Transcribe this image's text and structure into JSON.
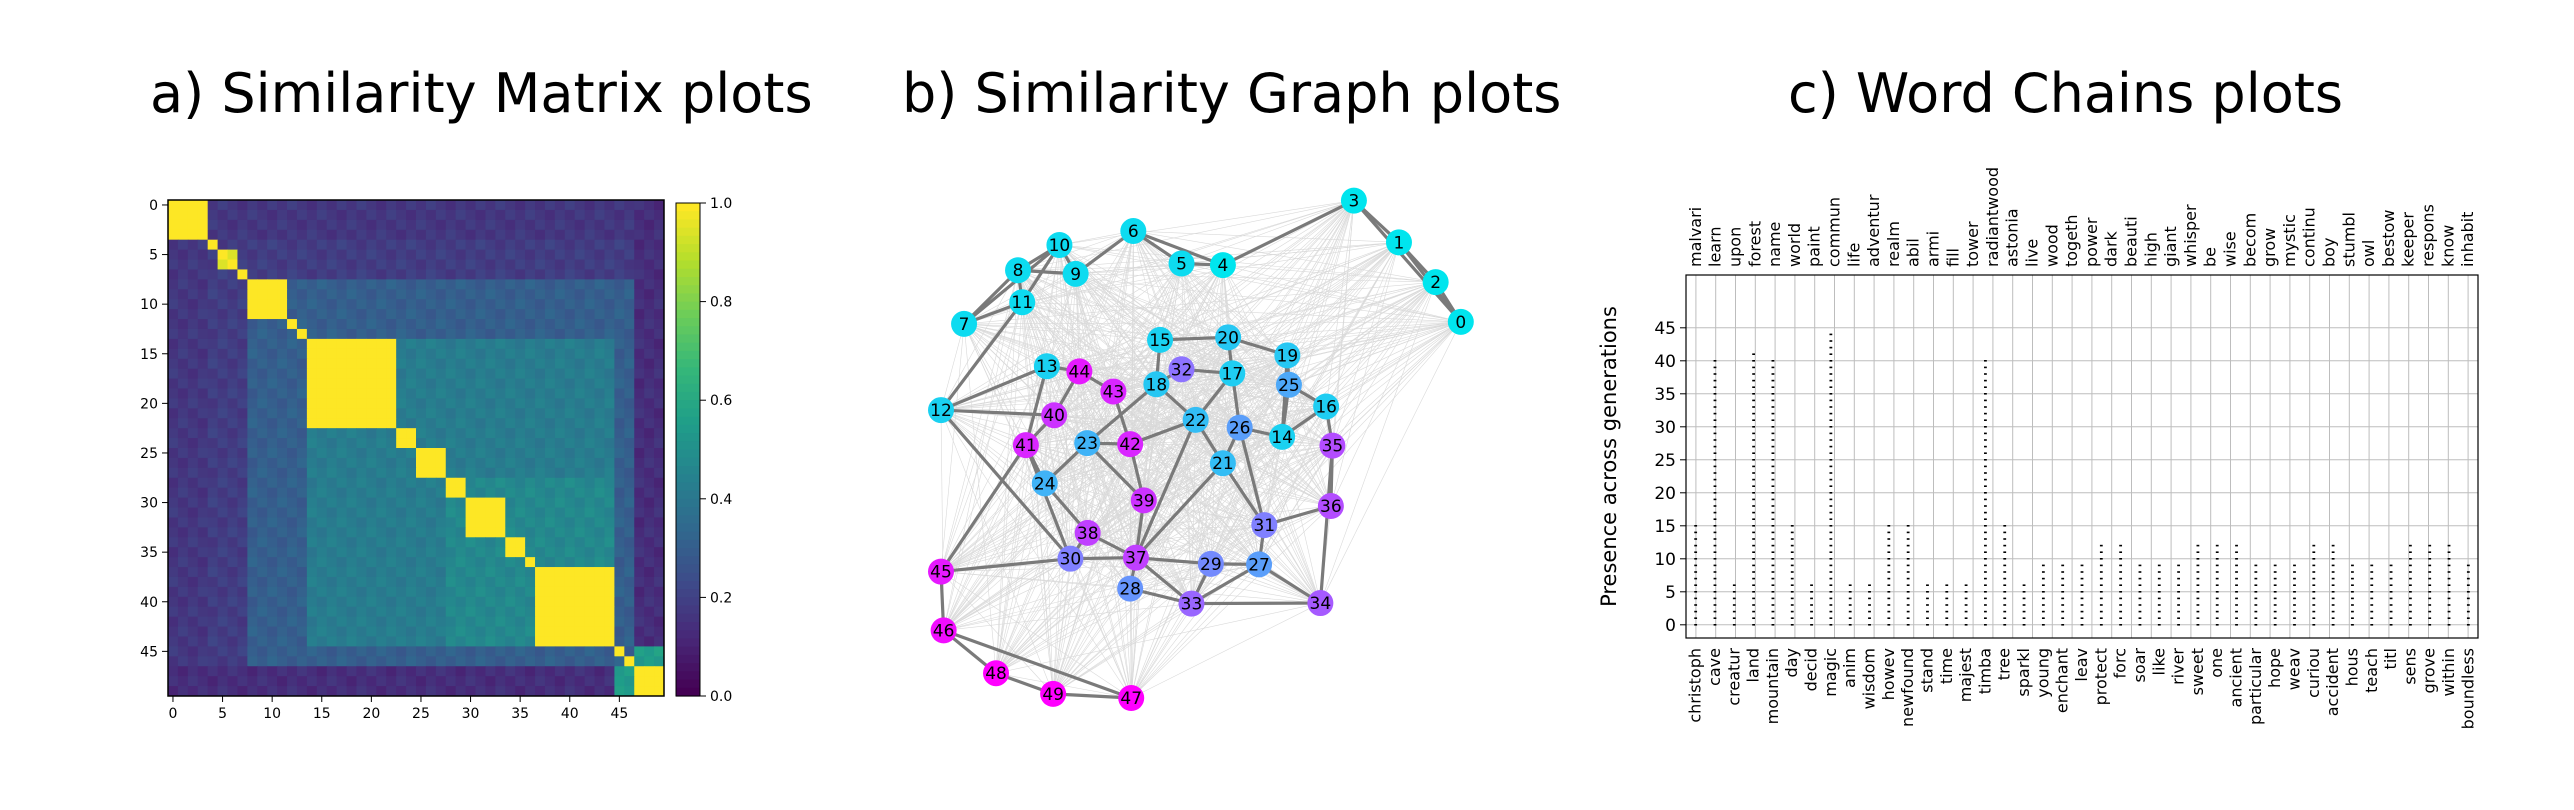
{
  "panels": {
    "a_title": "a) Similarity Matrix plots",
    "b_title": "b) Similarity Graph plots",
    "c_title": "c) Word Chains plots"
  },
  "chart_data": [
    {
      "type": "heatmap",
      "title": "",
      "n": 50,
      "xticks": [
        "0",
        "5",
        "10",
        "15",
        "20",
        "25",
        "30",
        "35",
        "40",
        "45"
      ],
      "yticks": [
        "0",
        "5",
        "10",
        "15",
        "20",
        "25",
        "30",
        "35",
        "40",
        "45"
      ],
      "colorbar": {
        "min": 0.0,
        "max": 1.0,
        "ticks": [
          "0.0",
          "0.2",
          "0.4",
          "0.6",
          "0.8",
          "1.0"
        ],
        "colormap": "viridis"
      },
      "blocks": [
        {
          "start": 0,
          "end": 3,
          "value": 1.0
        },
        {
          "start": 4,
          "end": 4,
          "value": 1.0
        },
        {
          "start": 5,
          "end": 6,
          "value": 0.95
        },
        {
          "start": 7,
          "end": 7,
          "value": 0.95
        },
        {
          "start": 8,
          "end": 11,
          "value": 1.0
        },
        {
          "start": 12,
          "end": 12,
          "value": 1.0
        },
        {
          "start": 13,
          "end": 13,
          "value": 1.0
        },
        {
          "start": 14,
          "end": 22,
          "value": 1.0
        },
        {
          "start": 23,
          "end": 24,
          "value": 1.0
        },
        {
          "start": 25,
          "end": 27,
          "value": 1.0
        },
        {
          "start": 28,
          "end": 29,
          "value": 1.0
        },
        {
          "start": 30,
          "end": 33,
          "value": 1.0
        },
        {
          "start": 34,
          "end": 35,
          "value": 1.0
        },
        {
          "start": 36,
          "end": 36,
          "value": 1.0
        },
        {
          "start": 37,
          "end": 44,
          "value": 1.0
        },
        {
          "start": 45,
          "end": 45,
          "value": 1.0
        },
        {
          "start": 46,
          "end": 46,
          "value": 1.0
        },
        {
          "start": 47,
          "end": 49,
          "value": 1.0
        }
      ],
      "background_value": 0.18
    },
    {
      "type": "graph",
      "title": "",
      "nodes": [
        {
          "id": "0",
          "x": 0.992,
          "y": 0.271,
          "group": 0
        },
        {
          "id": "1",
          "x": 0.874,
          "y": 0.117,
          "group": 0
        },
        {
          "id": "2",
          "x": 0.944,
          "y": 0.194,
          "group": 0
        },
        {
          "id": "3",
          "x": 0.788,
          "y": 0.036,
          "group": 0
        },
        {
          "id": "4",
          "x": 0.538,
          "y": 0.161,
          "group": 0
        },
        {
          "id": "5",
          "x": 0.459,
          "y": 0.158,
          "group": 0.05
        },
        {
          "id": "6",
          "x": 0.367,
          "y": 0.095,
          "group": 0.05
        },
        {
          "id": "7",
          "x": 0.044,
          "y": 0.275,
          "group": 0.05
        },
        {
          "id": "8",
          "x": 0.147,
          "y": 0.171,
          "group": 0.05
        },
        {
          "id": "9",
          "x": 0.257,
          "y": 0.178,
          "group": 0.05
        },
        {
          "id": "10",
          "x": 0.226,
          "y": 0.122,
          "group": 0.05
        },
        {
          "id": "11",
          "x": 0.155,
          "y": 0.233,
          "group": 0.05
        },
        {
          "id": "12",
          "x": 0.0,
          "y": 0.442,
          "group": 0.1
        },
        {
          "id": "13",
          "x": 0.202,
          "y": 0.357,
          "group": 0.1
        },
        {
          "id": "14",
          "x": 0.651,
          "y": 0.494,
          "group": 0.1
        },
        {
          "id": "15",
          "x": 0.418,
          "y": 0.306,
          "group": 0.1
        },
        {
          "id": "16",
          "x": 0.735,
          "y": 0.435,
          "group": 0.12
        },
        {
          "id": "17",
          "x": 0.556,
          "y": 0.371,
          "group": 0.12
        },
        {
          "id": "18",
          "x": 0.411,
          "y": 0.392,
          "group": 0.15
        },
        {
          "id": "19",
          "x": 0.661,
          "y": 0.336,
          "group": 0.15
        },
        {
          "id": "20",
          "x": 0.548,
          "y": 0.301,
          "group": 0.15
        },
        {
          "id": "21",
          "x": 0.538,
          "y": 0.545,
          "group": 0.2
        },
        {
          "id": "22",
          "x": 0.486,
          "y": 0.461,
          "group": 0.2
        },
        {
          "id": "23",
          "x": 0.279,
          "y": 0.506,
          "group": 0.25
        },
        {
          "id": "24",
          "x": 0.198,
          "y": 0.584,
          "group": 0.25
        },
        {
          "id": "25",
          "x": 0.664,
          "y": 0.393,
          "group": 0.3
        },
        {
          "id": "26",
          "x": 0.57,
          "y": 0.476,
          "group": 0.35
        },
        {
          "id": "27",
          "x": 0.607,
          "y": 0.741,
          "group": 0.35
        },
        {
          "id": "28",
          "x": 0.361,
          "y": 0.788,
          "group": 0.4
        },
        {
          "id": "29",
          "x": 0.515,
          "y": 0.74,
          "group": 0.45
        },
        {
          "id": "30",
          "x": 0.247,
          "y": 0.73,
          "group": 0.5
        },
        {
          "id": "31",
          "x": 0.617,
          "y": 0.665,
          "group": 0.5
        },
        {
          "id": "32",
          "x": 0.459,
          "y": 0.363,
          "group": 0.55
        },
        {
          "id": "33",
          "x": 0.478,
          "y": 0.817,
          "group": 0.6
        },
        {
          "id": "34",
          "x": 0.724,
          "y": 0.816,
          "group": 0.65
        },
        {
          "id": "35",
          "x": 0.747,
          "y": 0.511,
          "group": 0.7
        },
        {
          "id": "36",
          "x": 0.744,
          "y": 0.628,
          "group": 0.7
        },
        {
          "id": "37",
          "x": 0.372,
          "y": 0.728,
          "group": 0.75
        },
        {
          "id": "38",
          "x": 0.28,
          "y": 0.68,
          "group": 0.75
        },
        {
          "id": "39",
          "x": 0.387,
          "y": 0.617,
          "group": 0.8
        },
        {
          "id": "40",
          "x": 0.216,
          "y": 0.452,
          "group": 0.8
        },
        {
          "id": "41",
          "x": 0.162,
          "y": 0.51,
          "group": 0.85
        },
        {
          "id": "42",
          "x": 0.361,
          "y": 0.508,
          "group": 0.85
        },
        {
          "id": "43",
          "x": 0.329,
          "y": 0.406,
          "group": 0.85
        },
        {
          "id": "44",
          "x": 0.264,
          "y": 0.367,
          "group": 0.9
        },
        {
          "id": "45",
          "x": 0.0,
          "y": 0.755,
          "group": 0.9
        },
        {
          "id": "46",
          "x": 0.005,
          "y": 0.869,
          "group": 0.95
        },
        {
          "id": "47",
          "x": 0.363,
          "y": 1.0,
          "group": 1
        },
        {
          "id": "48",
          "x": 0.105,
          "y": 0.952,
          "group": 1
        },
        {
          "id": "49",
          "x": 0.214,
          "y": 0.992,
          "group": 1
        }
      ],
      "strong_edges": [
        [
          "3",
          "0"
        ],
        [
          "3",
          "1"
        ],
        [
          "1",
          "2"
        ],
        [
          "2",
          "0"
        ],
        [
          "1",
          "0"
        ],
        [
          "3",
          "4"
        ],
        [
          "4",
          "6"
        ],
        [
          "6",
          "5"
        ],
        [
          "5",
          "4"
        ],
        [
          "6",
          "9"
        ],
        [
          "10",
          "9"
        ],
        [
          "10",
          "8"
        ],
        [
          "8",
          "9"
        ],
        [
          "8",
          "11"
        ],
        [
          "11",
          "7"
        ],
        [
          "10",
          "7"
        ],
        [
          "10",
          "11"
        ],
        [
          "7",
          "8"
        ],
        [
          "12",
          "13"
        ],
        [
          "12",
          "11"
        ],
        [
          "12",
          "40"
        ],
        [
          "12",
          "30"
        ],
        [
          "13",
          "44"
        ],
        [
          "13",
          "41"
        ],
        [
          "15",
          "20"
        ],
        [
          "20",
          "19"
        ],
        [
          "19",
          "25"
        ],
        [
          "25",
          "16"
        ],
        [
          "16",
          "14"
        ],
        [
          "14",
          "26"
        ],
        [
          "26",
          "21"
        ],
        [
          "21",
          "22"
        ],
        [
          "22",
          "17"
        ],
        [
          "17",
          "32"
        ],
        [
          "32",
          "18"
        ],
        [
          "18",
          "15"
        ],
        [
          "18",
          "22"
        ],
        [
          "22",
          "42"
        ],
        [
          "42",
          "43"
        ],
        [
          "43",
          "44"
        ],
        [
          "44",
          "40"
        ],
        [
          "40",
          "41"
        ],
        [
          "41",
          "24"
        ],
        [
          "24",
          "23"
        ],
        [
          "23",
          "42"
        ],
        [
          "23",
          "18"
        ],
        [
          "41",
          "30"
        ],
        [
          "30",
          "38"
        ],
        [
          "38",
          "37"
        ],
        [
          "37",
          "29"
        ],
        [
          "29",
          "33"
        ],
        [
          "33",
          "28"
        ],
        [
          "28",
          "37"
        ],
        [
          "37",
          "39"
        ],
        [
          "39",
          "42"
        ],
        [
          "38",
          "24"
        ],
        [
          "29",
          "27"
        ],
        [
          "27",
          "31"
        ],
        [
          "31",
          "36"
        ],
        [
          "36",
          "35"
        ],
        [
          "35",
          "34"
        ],
        [
          "34",
          "33"
        ],
        [
          "33",
          "27"
        ],
        [
          "27",
          "34"
        ],
        [
          "31",
          "21"
        ],
        [
          "26",
          "31"
        ],
        [
          "35",
          "16"
        ],
        [
          "45",
          "46"
        ],
        [
          "46",
          "48"
        ],
        [
          "48",
          "49"
        ],
        [
          "49",
          "47"
        ],
        [
          "46",
          "47"
        ],
        [
          "45",
          "30"
        ],
        [
          "45",
          "41"
        ],
        [
          "21",
          "37"
        ],
        [
          "22",
          "37"
        ],
        [
          "37",
          "33"
        ],
        [
          "30",
          "37"
        ],
        [
          "39",
          "23"
        ],
        [
          "17",
          "26"
        ],
        [
          "25",
          "14"
        ],
        [
          "19",
          "14"
        ],
        [
          "20",
          "17"
        ]
      ]
    },
    {
      "type": "scatter",
      "title": "",
      "ylabel": "Presence across generations",
      "yticks": [
        "0",
        "5",
        "10",
        "15",
        "20",
        "25",
        "30",
        "35",
        "40",
        "45"
      ],
      "ylim": [
        -2,
        53
      ],
      "top_labels": [
        "malvari",
        "learn",
        "upon",
        "forest",
        "name",
        "world",
        "paint",
        "commun",
        "life",
        "adventur",
        "realm",
        "abil",
        "armi",
        "fill",
        "tower",
        "radiantwood",
        "astonia",
        "live",
        "wood",
        "togeth",
        "power",
        "dark",
        "beauti",
        "high",
        "giant",
        "whisper",
        "be",
        "wise",
        "becom",
        "grow",
        "mystic",
        "continu",
        "boy",
        "stumbl",
        "owl",
        "bestow",
        "keeper",
        "respons",
        "know",
        "inhabit"
      ],
      "bottom_labels": [
        "christoph",
        "cave",
        "creatur",
        "land",
        "mountain",
        "day",
        "decid",
        "magic",
        "anim",
        "wisdom",
        "howev",
        "newfound",
        "stand",
        "time",
        "majest",
        "timba",
        "tree",
        "sparkl",
        "young",
        "enchant",
        "leav",
        "protect",
        "forc",
        "soar",
        "like",
        "river",
        "sweet",
        "one",
        "ancient",
        "particular",
        "hope",
        "weav",
        "curiou",
        "accident",
        "hous",
        "teach",
        "titl",
        "sens",
        "grove",
        "within",
        "boundless"
      ],
      "points_note": "small black marks in columns indicating word presence per generation"
    }
  ]
}
